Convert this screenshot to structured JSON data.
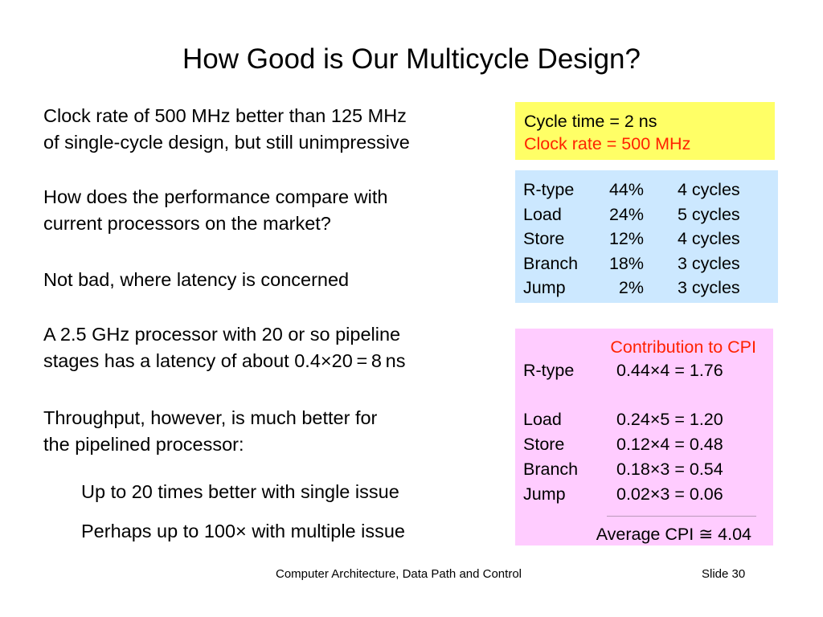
{
  "title": "How Good is Our Multicycle Design?",
  "body": {
    "p1": [
      "Clock rate of 500 MHz better than 125 MHz",
      "of single-cycle design, but still unimpressive"
    ],
    "p2": [
      "How does the performance compare with",
      "current processors on the market?"
    ],
    "p3": "Not bad, where latency is concerned",
    "p4": [
      "A 2.5 GHz processor with 20 or so pipeline",
      "stages has a latency of about 0.4×20 = 8 ns"
    ],
    "p5": [
      "Throughput, however, is much better for",
      "the pipelined processor:"
    ],
    "b1": "Up to 20 times better with single issue",
    "b2": "Perhaps up to 100× with multiple issue"
  },
  "cycle_box": {
    "line1": "Cycle time = 2 ns",
    "line2": "Clock rate = 500 MHz"
  },
  "mix_table": {
    "rows": [
      {
        "type": "R-type",
        "pct": "44%",
        "cycles": "4 cycles"
      },
      {
        "type": "Load",
        "pct": "24%",
        "cycles": "5 cycles"
      },
      {
        "type": "Store",
        "pct": "12%",
        "cycles": "4 cycles"
      },
      {
        "type": "Branch",
        "pct": "18%",
        "cycles": "3 cycles"
      },
      {
        "type": "Jump",
        "pct": "2%",
        "cycles": "3 cycles"
      }
    ]
  },
  "cpi_box": {
    "heading": "Contribution to CPI",
    "rows": [
      {
        "type": "R-type",
        "expr": "0.44×4 = 1.76"
      },
      {
        "type": "Load",
        "expr": "0.24×5 = 1.20"
      },
      {
        "type": "Store",
        "expr": "0.12×4 = 0.48"
      },
      {
        "type": "Branch",
        "expr": "0.18×3 = 0.54"
      },
      {
        "type": "Jump",
        "expr": "0.02×3 = 0.06"
      }
    ],
    "average": "Average CPI ≅ 4.04"
  },
  "footer": {
    "course": "Computer Architecture, Data Path and Control",
    "slide": "Slide 30"
  },
  "colors": {
    "yellow_box": "#ffff66",
    "blue_box": "#cce8ff",
    "pink_box": "#ffccff",
    "red_text": "#ff2200"
  }
}
